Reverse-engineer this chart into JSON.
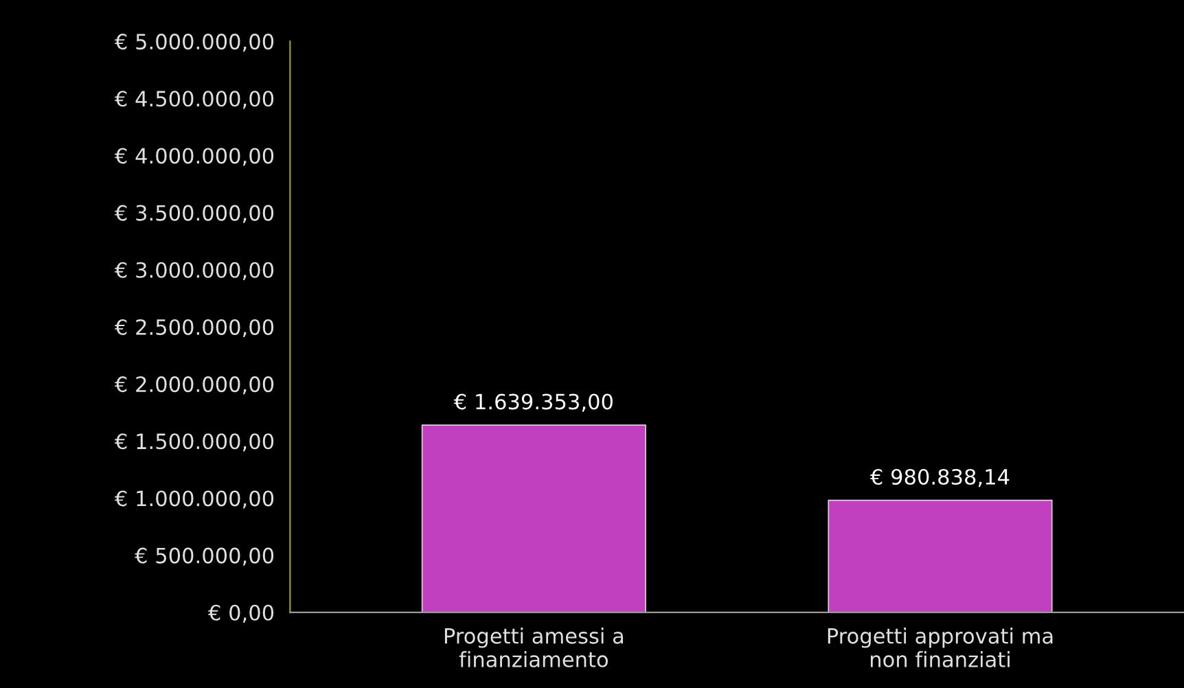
{
  "chart_data": {
    "type": "bar",
    "categories": [
      "Progetti amessi a finanziamento",
      "Progetti approvati ma non finanziati"
    ],
    "values": [
      1639353.0,
      980838.14
    ],
    "colors": [
      "#c040c0",
      "#c040c0"
    ],
    "value_labels": [
      "€ 1.639.353,00",
      "€ 980.838,14"
    ],
    "ylim": [
      0,
      5000000
    ],
    "yticks": [
      {
        "value": 0,
        "label": "€ 0,00"
      },
      {
        "value": 500000,
        "label": "€ 500.000,00"
      },
      {
        "value": 1000000,
        "label": "€ 1.000.000,00"
      },
      {
        "value": 1500000,
        "label": "€ 1.500.000,00"
      },
      {
        "value": 2000000,
        "label": "€ 2.000.000,00"
      },
      {
        "value": 2500000,
        "label": "€ 2.500.000,00"
      },
      {
        "value": 3000000,
        "label": "€ 3.000.000,00"
      },
      {
        "value": 3500000,
        "label": "€ 3.500.000,00"
      },
      {
        "value": 4000000,
        "label": "€ 4.000.000,00"
      },
      {
        "value": 4500000,
        "label": "€ 4.500.000,00"
      },
      {
        "value": 5000000,
        "label": "€ 5.000.000,00"
      }
    ],
    "grid": false,
    "legend": false
  }
}
